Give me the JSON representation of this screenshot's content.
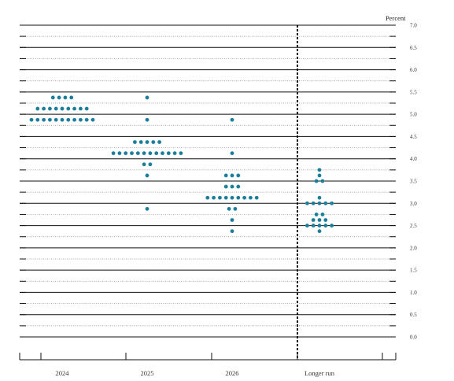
{
  "colors": {
    "dot": "#1a7f9c",
    "grid_major": "#111111",
    "grid_minor": "#888888",
    "divider": "#000000"
  },
  "chart_data": {
    "type": "scatter",
    "ylabel": "Percent",
    "ylim": [
      0.0,
      7.0
    ],
    "yticks": [
      "0.0",
      "0.5",
      "1.0",
      "1.5",
      "2.0",
      "2.5",
      "3.0",
      "3.5",
      "4.0",
      "4.5",
      "5.0",
      "5.5",
      "6.0",
      "6.5",
      "7.0"
    ],
    "categories": [
      "2024",
      "2025",
      "2026",
      "Longer run"
    ],
    "grid": "major lines at whole and half percents, dotted minor lines at 0.25 steps",
    "divider": "dashed vertical line between 2026 and Longer run",
    "series": [
      {
        "category": "2024",
        "points": [
          {
            "y": 5.375,
            "count": 4
          },
          {
            "y": 5.125,
            "count": 9
          },
          {
            "y": 4.875,
            "count": 11
          }
        ]
      },
      {
        "category": "2025",
        "points": [
          {
            "y": 5.375,
            "count": 1
          },
          {
            "y": 4.875,
            "count": 1
          },
          {
            "y": 4.375,
            "count": 5
          },
          {
            "y": 4.125,
            "count": 12
          },
          {
            "y": 3.875,
            "count": 2
          },
          {
            "y": 3.625,
            "count": 1
          },
          {
            "y": 2.875,
            "count": 1
          }
        ]
      },
      {
        "category": "2026",
        "points": [
          {
            "y": 4.875,
            "count": 1
          },
          {
            "y": 4.125,
            "count": 1
          },
          {
            "y": 3.625,
            "count": 3
          },
          {
            "y": 3.375,
            "count": 3
          },
          {
            "y": 3.125,
            "count": 9
          },
          {
            "y": 2.875,
            "count": 2
          },
          {
            "y": 2.625,
            "count": 1
          },
          {
            "y": 2.375,
            "count": 1
          }
        ]
      },
      {
        "category": "Longer run",
        "points": [
          {
            "y": 3.75,
            "count": 1
          },
          {
            "y": 3.625,
            "count": 1
          },
          {
            "y": 3.5,
            "count": 2
          },
          {
            "y": 3.125,
            "count": 1
          },
          {
            "y": 3.0,
            "count": 5
          },
          {
            "y": 2.75,
            "count": 2
          },
          {
            "y": 2.625,
            "count": 3
          },
          {
            "y": 2.5,
            "count": 5
          },
          {
            "y": 2.375,
            "count": 1
          }
        ]
      }
    ]
  }
}
